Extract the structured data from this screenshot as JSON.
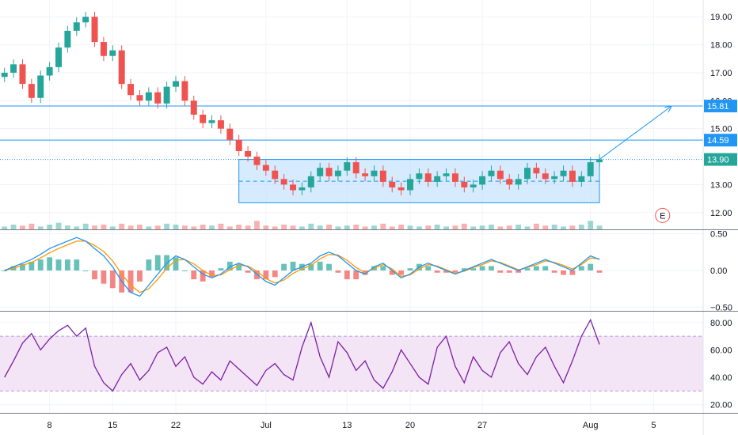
{
  "chart_data": {
    "type": "line",
    "title": "",
    "colors": {
      "up": "#26a69a",
      "down": "#ef5350",
      "line": "#2196f3",
      "box": "#bbdefb",
      "macd": "#2196f3",
      "signal": "#ff9800",
      "rsi": "#7b1fa2",
      "rsi_band": "#f3e5f5",
      "grid": "#f0f3fa",
      "axis": "#131722"
    },
    "price_panel": {
      "ylim": [
        11.4,
        19.6
      ],
      "yticks": [
        "12.00",
        "13.00",
        "14.00",
        "15.00",
        "16.00",
        "17.00",
        "18.00",
        "19.00"
      ],
      "series_close": [
        17.0,
        17.3,
        16.6,
        16.1,
        16.9,
        17.2,
        17.9,
        18.5,
        18.8,
        19.0,
        18.1,
        17.6,
        17.8,
        16.6,
        16.2,
        16.0,
        16.3,
        15.9,
        16.5,
        16.7,
        16.0,
        15.5,
        15.2,
        15.3,
        15.0,
        14.6,
        14.2,
        14.0,
        13.7,
        13.5,
        13.2,
        13.0,
        12.8,
        12.9,
        13.3,
        13.6,
        13.3,
        13.5,
        13.8,
        13.4,
        13.3,
        13.5,
        13.1,
        12.9,
        12.8,
        13.2,
        13.4,
        13.1,
        13.3,
        13.4,
        13.1,
        12.9,
        13.0,
        13.3,
        13.5,
        13.2,
        13.0,
        13.2,
        13.6,
        13.4,
        13.2,
        13.3,
        13.5,
        13.1,
        13.3,
        13.8,
        13.9
      ],
      "volume": [
        0.3,
        0.5,
        0.4,
        0.6,
        0.3,
        0.5,
        0.7,
        0.4,
        0.3,
        0.6,
        0.4,
        0.5,
        0.3,
        0.6,
        0.4,
        0.5,
        0.3,
        0.4,
        0.6,
        0.5,
        0.4,
        0.3,
        0.5,
        0.4,
        0.6,
        0.3,
        0.5,
        0.4,
        0.9,
        0.4,
        0.3,
        0.5,
        0.4,
        0.3,
        0.6,
        0.4,
        0.5,
        0.3,
        0.4,
        0.5,
        0.3,
        0.4,
        0.6,
        0.3,
        0.5,
        0.4,
        0.3,
        0.4,
        0.5,
        0.3,
        0.4,
        0.6,
        0.3,
        0.4,
        0.5,
        0.3,
        0.4,
        0.5,
        0.3,
        0.6,
        0.4,
        0.5,
        0.3,
        0.4,
        0.5,
        0.9,
        0.4
      ],
      "levels": [
        {
          "label": "15.81",
          "value": 15.81,
          "style": "solid"
        },
        {
          "label": "14.59",
          "value": 14.59,
          "style": "solid"
        },
        {
          "label": "13.90",
          "value": 13.9,
          "style": "dotted",
          "current": true
        }
      ],
      "range_box": {
        "start_index": 26,
        "end_index": 66,
        "top": 13.9,
        "bottom": 12.35,
        "mid": 13.12
      },
      "projection": {
        "start_index": 66,
        "start_value": 13.9,
        "end_index": 74,
        "end_value": 15.81
      },
      "event_marker": "E"
    },
    "macd_panel": {
      "ylim": [
        -0.55,
        0.55
      ],
      "yticks": [
        "0.50",
        "0.00",
        "−0.50"
      ],
      "macd": [
        0.0,
        0.05,
        0.1,
        0.15,
        0.22,
        0.3,
        0.35,
        0.4,
        0.45,
        0.4,
        0.3,
        0.2,
        0.05,
        -0.15,
        -0.3,
        -0.35,
        -0.2,
        -0.05,
        0.1,
        0.2,
        0.15,
        0.05,
        -0.05,
        -0.1,
        -0.05,
        0.05,
        0.1,
        0.05,
        -0.05,
        -0.15,
        -0.2,
        -0.1,
        0.0,
        0.05,
        0.1,
        0.2,
        0.25,
        0.2,
        0.1,
        0.0,
        -0.05,
        0.05,
        0.1,
        0.0,
        -0.1,
        -0.05,
        0.05,
        0.1,
        0.05,
        0.0,
        -0.05,
        0.0,
        0.05,
        0.1,
        0.15,
        0.1,
        0.05,
        0.0,
        0.05,
        0.1,
        0.15,
        0.1,
        0.05,
        0.0,
        0.1,
        0.2,
        0.15
      ],
      "signal": [
        0.0,
        0.03,
        0.07,
        0.11,
        0.17,
        0.24,
        0.3,
        0.35,
        0.4,
        0.4,
        0.34,
        0.26,
        0.13,
        -0.05,
        -0.2,
        -0.3,
        -0.25,
        -0.12,
        0.03,
        0.14,
        0.15,
        0.09,
        0.0,
        -0.07,
        -0.06,
        0.01,
        0.07,
        0.06,
        -0.01,
        -0.11,
        -0.17,
        -0.13,
        -0.04,
        0.02,
        0.07,
        0.16,
        0.22,
        0.21,
        0.14,
        0.04,
        -0.03,
        0.03,
        0.08,
        0.02,
        -0.08,
        -0.06,
        0.02,
        0.08,
        0.06,
        0.01,
        -0.04,
        -0.01,
        0.04,
        0.08,
        0.13,
        0.11,
        0.06,
        0.01,
        0.04,
        0.08,
        0.13,
        0.11,
        0.07,
        0.02,
        0.08,
        0.17,
        0.16
      ]
    },
    "rsi_panel": {
      "ylim": [
        14,
        88
      ],
      "yticks": [
        "20.00",
        "40.00",
        "60.00",
        "80.00"
      ],
      "band": [
        30,
        70
      ],
      "values": [
        40,
        52,
        65,
        72,
        60,
        68,
        74,
        78,
        70,
        76,
        48,
        36,
        30,
        42,
        50,
        38,
        45,
        58,
        62,
        48,
        55,
        40,
        35,
        44,
        38,
        52,
        46,
        40,
        34,
        45,
        50,
        42,
        38,
        62,
        80,
        55,
        40,
        66,
        58,
        45,
        52,
        38,
        32,
        44,
        60,
        50,
        40,
        35,
        62,
        70,
        48,
        36,
        55,
        45,
        40,
        58,
        66,
        50,
        42,
        55,
        62,
        48,
        36,
        52,
        70,
        82,
        64
      ]
    },
    "x_axis": {
      "labels": [
        "8",
        "15",
        "22",
        "Jul",
        "13",
        "20",
        "27",
        "Aug",
        "5"
      ],
      "label_indices": [
        5,
        12,
        19,
        29,
        38,
        45,
        53,
        65,
        72
      ],
      "total_slots": 78
    }
  }
}
